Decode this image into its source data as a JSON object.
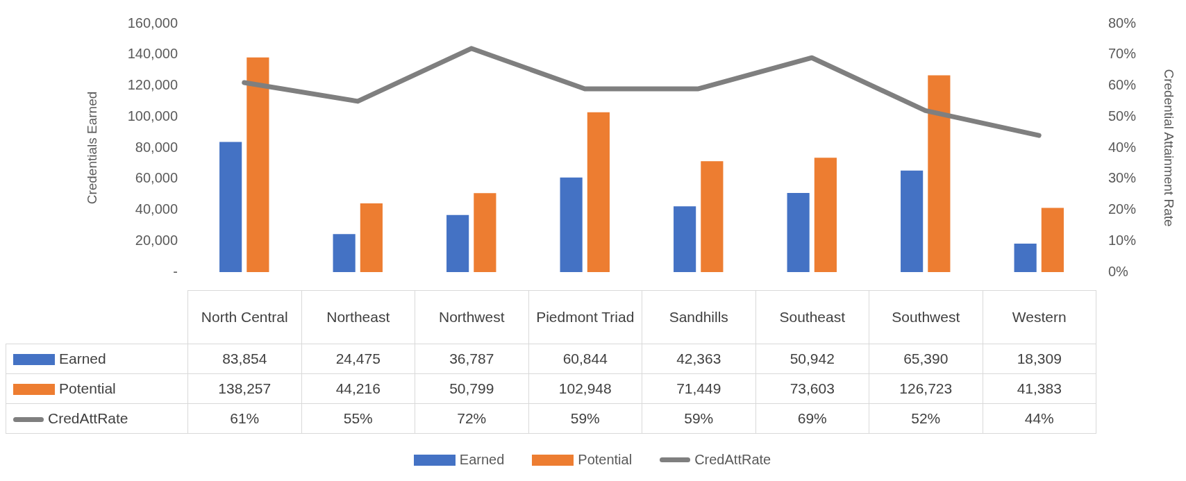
{
  "chart_data": {
    "type": "bar",
    "categories": [
      "North Central",
      "Northeast",
      "Northwest",
      "Piedmont Triad",
      "Sandhills",
      "Southeast",
      "Southwest",
      "Western"
    ],
    "series": [
      {
        "name": "Earned",
        "color": "#4472c4",
        "values": [
          83854,
          24475,
          36787,
          60844,
          42363,
          50942,
          65390,
          18309
        ],
        "value_labels": [
          "83,854",
          "24,475",
          "36,787",
          "60,844",
          "42,363",
          "50,942",
          "65,390",
          "18,309"
        ]
      },
      {
        "name": "Potential",
        "color": "#ed7d31",
        "values": [
          138257,
          44216,
          50799,
          102948,
          71449,
          73603,
          126723,
          41383
        ],
        "value_labels": [
          "138,257",
          "44,216",
          "50,799",
          "102,948",
          "71,449",
          "73,603",
          "126,723",
          "41,383"
        ]
      },
      {
        "name": "CredAttRate",
        "type": "line",
        "axis": "y2",
        "color": "#7f7f7f",
        "values": [
          61,
          55,
          72,
          59,
          59,
          69,
          52,
          44
        ],
        "value_labels": [
          "61%",
          "55%",
          "72%",
          "59%",
          "59%",
          "69%",
          "52%",
          "44%"
        ]
      }
    ],
    "ylabel": "Credentials Earned",
    "y2label": "Credential Attainment Rate",
    "ylim": [
      0,
      160000
    ],
    "yticks": [
      {
        "value": 0,
        "label": "-"
      },
      {
        "value": 20000,
        "label": "20,000"
      },
      {
        "value": 40000,
        "label": "40,000"
      },
      {
        "value": 60000,
        "label": "60,000"
      },
      {
        "value": 80000,
        "label": "80,000"
      },
      {
        "value": 100000,
        "label": "100,000"
      },
      {
        "value": 120000,
        "label": "120,000"
      },
      {
        "value": 140000,
        "label": "140,000"
      },
      {
        "value": 160000,
        "label": "160,000"
      }
    ],
    "y2lim": [
      0,
      80
    ],
    "y2ticks": [
      {
        "value": 0,
        "label": "0%"
      },
      {
        "value": 10,
        "label": "10%"
      },
      {
        "value": 20,
        "label": "20%"
      },
      {
        "value": 30,
        "label": "30%"
      },
      {
        "value": 40,
        "label": "40%"
      },
      {
        "value": 50,
        "label": "50%"
      },
      {
        "value": 60,
        "label": "60%"
      },
      {
        "value": 70,
        "label": "70%"
      },
      {
        "value": 80,
        "label": "80%"
      }
    ],
    "marker": "none",
    "legend": "bottom"
  }
}
